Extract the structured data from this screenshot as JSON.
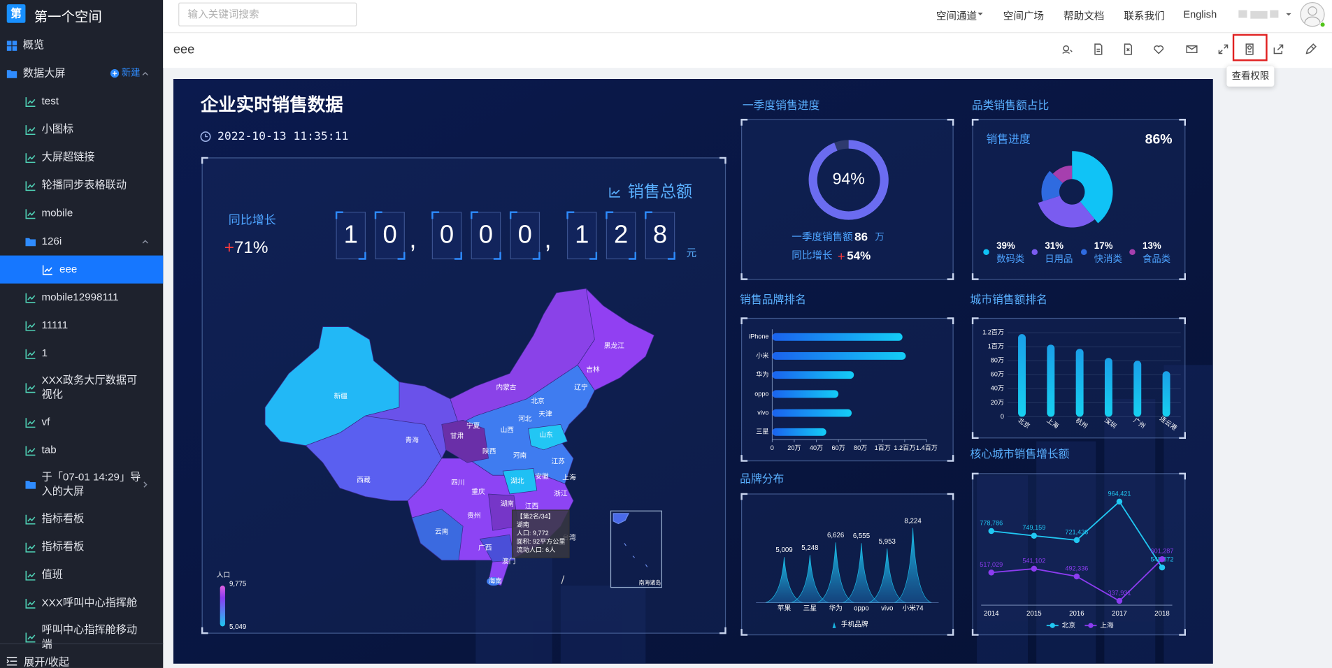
{
  "sidebar": {
    "logo": "第",
    "space_name": "第一个空间",
    "menu": [
      {
        "label": "概览"
      },
      {
        "label": "数据大屏",
        "action": "新建",
        "expanded": true,
        "children": [
          {
            "label": "test"
          },
          {
            "label": "小图标"
          },
          {
            "label": "大屏超链接"
          },
          {
            "label": "轮播同步表格联动"
          },
          {
            "label": "mobile"
          },
          {
            "label": "126i",
            "expanded": true,
            "children": [
              {
                "label": "eee",
                "selected": true
              }
            ]
          },
          {
            "label": "mobile12998111"
          },
          {
            "label": "11111"
          },
          {
            "label": "1"
          },
          {
            "label": "XXX政务大厅数据可视化"
          },
          {
            "label": "vf"
          },
          {
            "label": "tab"
          },
          {
            "label": "于「07-01 14:29」导入的大屏",
            "expanded": false
          },
          {
            "label": "指标看板"
          },
          {
            "label": "指标看板"
          },
          {
            "label": "值班"
          },
          {
            "label": "XXX呼叫中心指挥舱"
          },
          {
            "label": "呼叫中心指挥舱移动端"
          }
        ]
      }
    ],
    "toggle": "展开/收起"
  },
  "topbar": {
    "search_placeholder": "输入关键词搜索",
    "nav": [
      "空间通道",
      "空间广场",
      "帮助文档",
      "联系我们",
      "English"
    ]
  },
  "toolbar": {
    "title": "eee",
    "tooltip": "查看权限"
  },
  "dashboard": {
    "title": "企业实时销售数据",
    "datetime": "2022-10-13 11:35:11",
    "growth": {
      "label": "同比增长",
      "sign": "+",
      "value": "71%"
    },
    "total": {
      "label": "销售总额",
      "digits": [
        "1",
        "0",
        ",",
        "0",
        "0",
        "0",
        ",",
        "1",
        "2",
        "8"
      ],
      "unit": "元"
    },
    "map": {
      "labels": [
        "新疆",
        "西藏",
        "青海",
        "甘肃",
        "宁夏",
        "内蒙古",
        "黑龙江",
        "吉林",
        "辽宁",
        "北京",
        "天津",
        "河北",
        "山西",
        "山东",
        "陕西",
        "河南",
        "江苏",
        "上海",
        "四川",
        "重庆",
        "湖北",
        "安徽",
        "浙江",
        "贵州",
        "湖南",
        "江西",
        "云南",
        "广西",
        "澳门",
        "海南",
        "台湾"
      ],
      "tooltip": [
        "【第2名/34】",
        "湖南",
        "人口: 9,772",
        "面积: 92平方公里",
        "流动人口: 6人"
      ],
      "legend": {
        "title": "人口",
        "max": "9,775",
        "min": "5,049"
      },
      "inset_label": "南海诸岛"
    }
  },
  "chart_data": [
    {
      "type": "gauge",
      "title": "一季度销售进度",
      "value": 94,
      "value_label": "94%",
      "color": "#6b6cf0",
      "sales_label": "一季度销售额",
      "sales_value": "86",
      "sales_unit": "万",
      "growth_label": "同比增长",
      "growth_sign": "+",
      "growth_value": "54%"
    },
    {
      "type": "pie",
      "title": "品类销售额占比",
      "subtitle": "销售进度",
      "summary": "86%",
      "categories": [
        "数码类",
        "日用品",
        "快消类",
        "食品类"
      ],
      "values": [
        39,
        31,
        17,
        13
      ],
      "value_labels": [
        "39%",
        "31%",
        "17%",
        "13%"
      ],
      "colors": [
        "#10c3f6",
        "#7a5cf0",
        "#2f6be0",
        "#a63fae"
      ]
    },
    {
      "type": "bar",
      "horizontal": true,
      "title": "销售品牌排名",
      "categories": [
        "iPhone",
        "小米",
        "华为",
        "oppo",
        "vivo",
        "三星"
      ],
      "values": [
        118,
        121,
        74,
        60,
        72,
        49
      ],
      "color": "#16b4f4",
      "xlim": [
        0,
        140
      ],
      "xticks": [
        0,
        {
          "value": 20,
          "label": "20万"
        },
        {
          "value": 40,
          "label": "40万"
        },
        {
          "value": 60,
          "label": "60万"
        },
        {
          "value": 80,
          "label": "80万"
        },
        {
          "value": 100,
          "label": "1百万"
        },
        {
          "value": 120,
          "label": "1.2百万"
        },
        {
          "value": 140,
          "label": "1.4百万"
        }
      ]
    },
    {
      "type": "bar",
      "title": "城市销售额排名",
      "categories": [
        "北京",
        "上海",
        "杭州",
        "深圳",
        "广州",
        "连云港"
      ],
      "values": [
        118,
        103,
        97,
        84,
        80,
        65
      ],
      "color": "#18b8e8",
      "ylim": [
        0,
        120
      ],
      "yticks": [
        0,
        {
          "value": 20,
          "label": "20万"
        },
        {
          "value": 40,
          "label": "40万"
        },
        {
          "value": 60,
          "label": "60万"
        },
        {
          "value": 80,
          "label": "80万"
        },
        {
          "value": 100,
          "label": "1百万"
        },
        {
          "value": 120,
          "label": "1.2百万"
        }
      ]
    },
    {
      "type": "area",
      "title": "品牌分布",
      "categories": [
        "苹果",
        "三星",
        "华为",
        "oppo",
        "vivo",
        "小米74"
      ],
      "series": [
        {
          "name": "手机品牌",
          "color": "#1ab4e0",
          "values": [
            5009,
            5248,
            6626,
            6555,
            5953,
            8224
          ],
          "value_labels": [
            "5,009",
            "5,248",
            "6,626",
            "6,555",
            "5,953",
            "8,224"
          ]
        }
      ]
    },
    {
      "type": "line",
      "title": "核心城市销售增长额",
      "categories": [
        "2014",
        "2015",
        "2016",
        "2017",
        "2018"
      ],
      "series": [
        {
          "name": "北京",
          "color": "#21c7f2",
          "values": [
            778786,
            749159,
            721436,
            964421,
            548872
          ],
          "value_labels": [
            "778,786",
            "749,159",
            "721,436",
            "964,421",
            "548,872"
          ]
        },
        {
          "name": "上海",
          "color": "#8c3cf0",
          "values": [
            517029,
            541102,
            492336,
            337931,
            601287
          ],
          "value_labels": [
            "517,029",
            "541,102",
            "492,336",
            "337,931",
            "601,287"
          ]
        }
      ]
    }
  ]
}
